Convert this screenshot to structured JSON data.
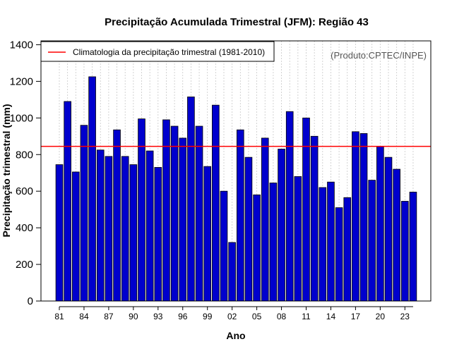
{
  "chart_data": {
    "type": "bar",
    "title": "Precipitação Acumulada Trimestral (JFM): Região 43",
    "xlabel": "Ano",
    "ylabel": "Precipitação trimestral (mm)",
    "ylim": [
      0,
      1400
    ],
    "yticks": [
      0,
      200,
      400,
      600,
      800,
      1000,
      1200,
      1400
    ],
    "xtick_labels": [
      "81",
      "84",
      "87",
      "90",
      "93",
      "96",
      "99",
      "02",
      "05",
      "08",
      "11",
      "14",
      "17",
      "20",
      "23"
    ],
    "categories": [
      "1981",
      "1982",
      "1983",
      "1984",
      "1985",
      "1986",
      "1987",
      "1988",
      "1989",
      "1990",
      "1991",
      "1992",
      "1993",
      "1994",
      "1995",
      "1996",
      "1997",
      "1998",
      "1999",
      "2000",
      "2001",
      "2002",
      "2003",
      "2004",
      "2005",
      "2006",
      "2007",
      "2008",
      "2009",
      "2010",
      "2011",
      "2012",
      "2013",
      "2014",
      "2015",
      "2016",
      "2017",
      "2018",
      "2019",
      "2020",
      "2021",
      "2022",
      "2023",
      "2024"
    ],
    "values": [
      745,
      1090,
      705,
      960,
      1225,
      825,
      790,
      935,
      790,
      745,
      995,
      820,
      730,
      990,
      955,
      890,
      1115,
      955,
      735,
      1070,
      600,
      320,
      935,
      785,
      580,
      890,
      645,
      830,
      1035,
      680,
      1000,
      900,
      620,
      650,
      510,
      565,
      925,
      915,
      660,
      845,
      785,
      720,
      545,
      595
    ],
    "bar_color": "#0000CD",
    "climatology": {
      "value": 845,
      "label": "Climatologia da precipitação trimestral (1981-2010)",
      "color": "#FF0000"
    },
    "legend_position": "top-left",
    "annotation": "(Produto:CPTEC/INPE)",
    "grid": "vertical dotted"
  }
}
